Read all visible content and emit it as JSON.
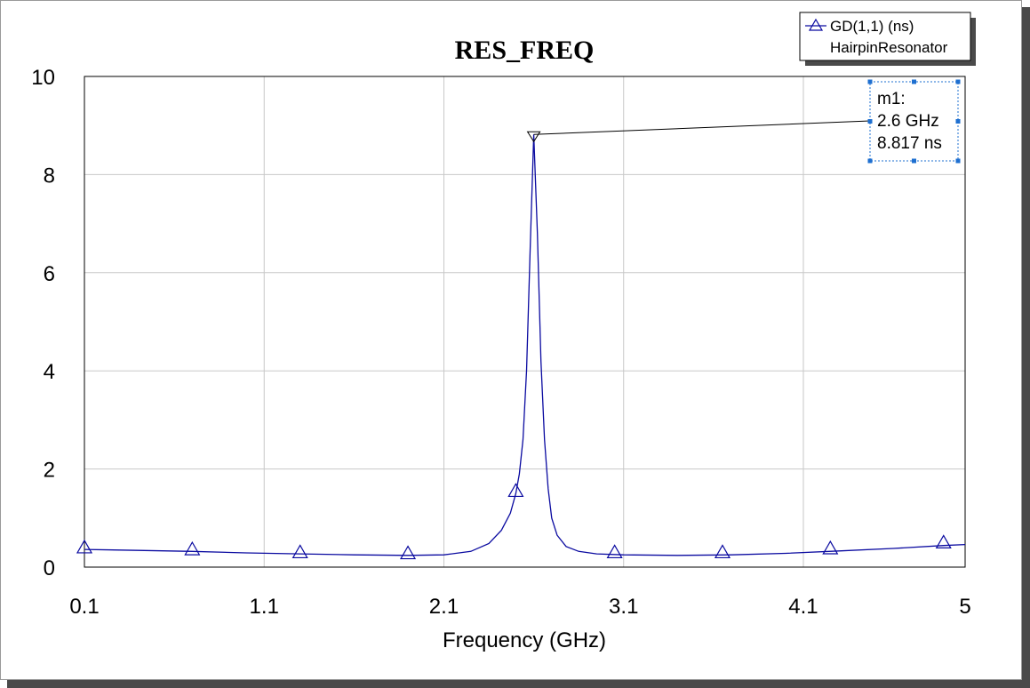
{
  "colors": {
    "series": "#0a0aa0",
    "grid": "#c8c8c8",
    "marker_handle": "#1e6fd0"
  },
  "chart_data": {
    "type": "line",
    "title": "RES_FREQ",
    "xlabel": "Frequency (GHz)",
    "ylabel": "",
    "xlim": [
      0.1,
      5
    ],
    "ylim": [
      0,
      10
    ],
    "x_ticks": [
      0.1,
      1.1,
      2.1,
      3.1,
      4.1,
      5
    ],
    "x_tick_labels": [
      "0.1",
      "1.1",
      "2.1",
      "3.1",
      "4.1",
      "5"
    ],
    "y_ticks": [
      0,
      2,
      4,
      6,
      8,
      10
    ],
    "y_tick_labels": [
      "0",
      "2",
      "4",
      "6",
      "8",
      "10"
    ],
    "grid": true,
    "legend": {
      "placement": "top-right",
      "entries": [
        "GD(1,1) (ns)",
        "HairpinResonator"
      ]
    },
    "series": [
      {
        "name": "GD(1,1) (ns)",
        "x": [
          0.1,
          0.4,
          0.7,
          1.0,
          1.3,
          1.6,
          1.9,
          2.1,
          2.25,
          2.35,
          2.42,
          2.47,
          2.5,
          2.52,
          2.54,
          2.56,
          2.58,
          2.6,
          2.62,
          2.64,
          2.66,
          2.68,
          2.7,
          2.73,
          2.78,
          2.85,
          2.95,
          3.1,
          3.4,
          3.7,
          4.0,
          4.3,
          4.6,
          4.88,
          5.0
        ],
        "y": [
          0.36,
          0.34,
          0.32,
          0.29,
          0.27,
          0.25,
          0.24,
          0.25,
          0.32,
          0.48,
          0.75,
          1.1,
          1.5,
          1.9,
          2.6,
          4.0,
          6.5,
          8.817,
          6.8,
          4.2,
          2.6,
          1.6,
          1.0,
          0.65,
          0.42,
          0.32,
          0.27,
          0.25,
          0.24,
          0.25,
          0.28,
          0.33,
          0.38,
          0.44,
          0.46
        ],
        "marker_x": [
          0.1,
          0.7,
          1.3,
          1.9,
          2.5,
          3.05,
          3.65,
          4.25,
          4.88
        ],
        "marker_y": [
          0.4,
          0.36,
          0.3,
          0.28,
          1.55,
          0.3,
          0.3,
          0.38,
          0.5
        ]
      }
    ],
    "annotations": [
      {
        "name": "m1",
        "x": 2.6,
        "y": 8.817,
        "lines": [
          "m1:",
          "2.6 GHz",
          "8.817 ns"
        ]
      }
    ]
  }
}
